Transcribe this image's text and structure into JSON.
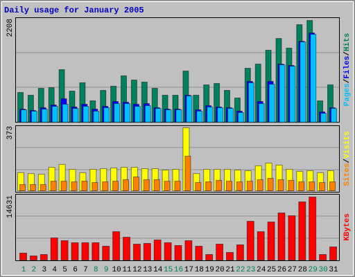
{
  "chart_data": [
    {
      "type": "bar",
      "title": "Daily usage for January 2005",
      "legend_separator": "/",
      "ylim": [
        0,
        2208
      ],
      "yticks": [
        2208
      ],
      "series": [
        {
          "name": "Hits",
          "color": "#00805c",
          "values": [
            646,
            586,
            736,
            751,
            1141,
            676,
            856,
            465,
            691,
            781,
            1006,
            916,
            871,
            736,
            586,
            586,
            1111,
            586,
            811,
            841,
            691,
            526,
            1171,
            1261,
            1562,
            1817,
            1607,
            2117,
            2208,
            465,
            811
          ]
        },
        {
          "name": "Files",
          "color": "#0000ff",
          "values": [
            285,
            255,
            315,
            375,
            510,
            330,
            390,
            285,
            345,
            450,
            435,
            390,
            405,
            315,
            285,
            285,
            586,
            270,
            360,
            330,
            315,
            240,
            886,
            450,
            886,
            1261,
            1231,
            1757,
            1937,
            225,
            315
          ]
        },
        {
          "name": "Pages",
          "color": "#00c0ff",
          "values": [
            270,
            240,
            285,
            345,
            390,
            300,
            345,
            240,
            315,
            405,
            405,
            345,
            360,
            300,
            270,
            270,
            570,
            240,
            330,
            315,
            300,
            210,
            856,
            405,
            826,
            1246,
            1216,
            1742,
            1907,
            195,
            300
          ]
        }
      ]
    },
    {
      "type": "bar",
      "legend_separator": "/",
      "ylim": [
        0,
        373
      ],
      "yticks": [
        373
      ],
      "series": [
        {
          "name": "Visits",
          "color": "#ffff00",
          "values": [
            107,
            102,
            98,
            139,
            156,
            127,
            107,
            127,
            131,
            135,
            139,
            139,
            131,
            131,
            123,
            127,
            373,
            102,
            127,
            127,
            127,
            123,
            119,
            148,
            164,
            152,
            127,
            115,
            119,
            107,
            119
          ]
        },
        {
          "name": "Sites",
          "color": "#ff8000",
          "values": [
            37,
            37,
            37,
            57,
            57,
            53,
            57,
            49,
            53,
            57,
            66,
            82,
            66,
            66,
            57,
            57,
            205,
            49,
            53,
            62,
            57,
            53,
            57,
            66,
            74,
            66,
            62,
            53,
            53,
            49,
            53
          ]
        }
      ]
    },
    {
      "type": "bar",
      "ylim": [
        0,
        14631
      ],
      "yticks": [
        14631
      ],
      "categories": [
        "1",
        "2",
        "3",
        "4",
        "5",
        "6",
        "7",
        "8",
        "9",
        "10",
        "11",
        "12",
        "13",
        "14",
        "15",
        "16",
        "17",
        "18",
        "19",
        "20",
        "21",
        "22",
        "23",
        "24",
        "25",
        "26",
        "27",
        "28",
        "29",
        "30",
        "31"
      ],
      "category_colors": [
        "#00805c",
        "#00805c",
        "#000000",
        "#000000",
        "#000000",
        "#000000",
        "#000000",
        "#00805c",
        "#00805c",
        "#000000",
        "#000000",
        "#000000",
        "#000000",
        "#000000",
        "#00805c",
        "#00805c",
        "#000000",
        "#000000",
        "#000000",
        "#000000",
        "#000000",
        "#00805c",
        "#00805c",
        "#000000",
        "#000000",
        "#000000",
        "#000000",
        "#000000",
        "#00805c",
        "#00805c",
        "#000000"
      ],
      "series": [
        {
          "name": "KBytes",
          "color": "#ff0000",
          "values": [
            1608,
            965,
            1286,
            5145,
            4502,
            4020,
            4020,
            4020,
            3216,
            6593,
            5306,
            3698,
            3859,
            4663,
            4020,
            3377,
            4502,
            3216,
            1286,
            3698,
            1769,
            3538,
            9005,
            6593,
            8844,
            10934,
            10291,
            13507,
            14631,
            1286,
            3055
          ]
        }
      ]
    }
  ]
}
